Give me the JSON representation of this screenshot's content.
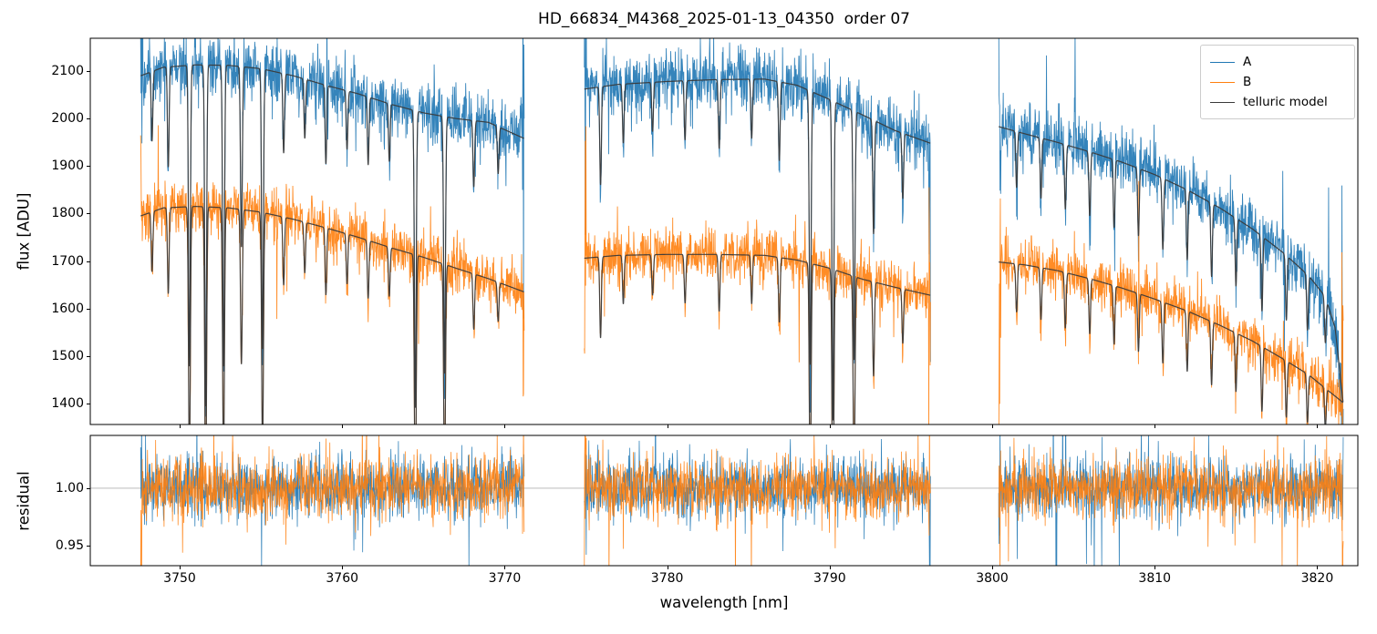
{
  "chart_data": {
    "type": "line",
    "title": "HD_66834_M4368_2025-01-13_04350  order 07",
    "xlabel": "wavelength [nm]",
    "xlim": [
      3744.5,
      3822.5
    ],
    "xticks": [
      3750,
      3760,
      3770,
      3780,
      3790,
      3800,
      3810,
      3820
    ],
    "segments_nm": [
      [
        3747.6,
        3771.2
      ],
      [
        3774.9,
        3796.2
      ],
      [
        3800.4,
        3821.6
      ]
    ],
    "sampling_step_nm": 0.02,
    "noise_seed": 20250113,
    "legend": {
      "position": "upper right",
      "entries": [
        "A",
        "B",
        "telluric model"
      ]
    },
    "colors": {
      "A": "#1f77b4",
      "B": "#ff7f0e",
      "telluric_model": "#3a3a3a",
      "grid_line": "#b0b0b0"
    },
    "panels": [
      {
        "ylabel": "flux [ADU]",
        "ylim": [
          1356,
          2169
        ],
        "yticks": [
          1400,
          1500,
          1600,
          1700,
          1800,
          1900,
          2000,
          2100
        ],
        "noise_sigma_adu": {
          "A": 33,
          "B": 28
        },
        "series": [
          {
            "name": "A",
            "continuum": [
              [
                3747.6,
                2090
              ],
              [
                3749,
                2108
              ],
              [
                3751,
                2113
              ],
              [
                3753,
                2112
              ],
              [
                3755,
                2105
              ],
              [
                3757,
                2090
              ],
              [
                3759,
                2070
              ],
              [
                3761,
                2052
              ],
              [
                3763,
                2030
              ],
              [
                3765,
                2012
              ],
              [
                3767,
                2000
              ],
              [
                3769,
                1992
              ],
              [
                3771.2,
                1958
              ],
              [
                3774.9,
                2062
              ],
              [
                3777,
                2072
              ],
              [
                3780,
                2078
              ],
              [
                3783,
                2082
              ],
              [
                3786,
                2083
              ],
              [
                3788,
                2070
              ],
              [
                3790,
                2040
              ],
              [
                3792,
                2008
              ],
              [
                3794,
                1975
              ],
              [
                3796.2,
                1948
              ],
              [
                3800.4,
                1983
              ],
              [
                3802,
                1968
              ],
              [
                3804,
                1950
              ],
              [
                3806,
                1930
              ],
              [
                3808,
                1908
              ],
              [
                3810,
                1882
              ],
              [
                3812,
                1850
              ],
              [
                3814,
                1812
              ],
              [
                3816,
                1768
              ],
              [
                3818,
                1715
              ],
              [
                3819.5,
                1668
              ],
              [
                3820.5,
                1625
              ],
              [
                3821.1,
                1560
              ],
              [
                3821.6,
                1400
              ]
            ]
          },
          {
            "name": "B",
            "continuum": [
              [
                3747.6,
                1795
              ],
              [
                3749,
                1812
              ],
              [
                3751,
                1815
              ],
              [
                3753,
                1812
              ],
              [
                3755,
                1803
              ],
              [
                3757,
                1788
              ],
              [
                3759,
                1770
              ],
              [
                3761,
                1750
              ],
              [
                3763,
                1728
              ],
              [
                3765,
                1708
              ],
              [
                3767,
                1685
              ],
              [
                3769,
                1663
              ],
              [
                3771.2,
                1635
              ],
              [
                3774.9,
                1706
              ],
              [
                3777,
                1712
              ],
              [
                3780,
                1714
              ],
              [
                3783,
                1714
              ],
              [
                3786,
                1712
              ],
              [
                3788,
                1702
              ],
              [
                3790,
                1685
              ],
              [
                3792,
                1662
              ],
              [
                3794,
                1645
              ],
              [
                3796.2,
                1628
              ],
              [
                3800.4,
                1698
              ],
              [
                3802,
                1692
              ],
              [
                3804,
                1680
              ],
              [
                3806,
                1663
              ],
              [
                3808,
                1643
              ],
              [
                3810,
                1620
              ],
              [
                3812,
                1595
              ],
              [
                3814,
                1565
              ],
              [
                3816,
                1532
              ],
              [
                3818,
                1492
              ],
              [
                3819.5,
                1460
              ],
              [
                3820.5,
                1432
              ],
              [
                3821.6,
                1402
              ]
            ]
          },
          {
            "name": "telluric model",
            "applies_to": [
              "A",
              "B"
            ]
          }
        ],
        "telluric_lines": [
          [
            3748.3,
            0.07,
            0.05
          ],
          [
            3749.3,
            0.1,
            0.05
          ],
          [
            3750.6,
            0.3,
            0.055
          ],
          [
            3751.6,
            0.34,
            0.055
          ],
          [
            3752.7,
            0.3,
            0.055
          ],
          [
            3753.8,
            0.18,
            0.055
          ],
          [
            3755.1,
            0.28,
            0.055
          ],
          [
            3756.4,
            0.08,
            0.05
          ],
          [
            3757.7,
            0.06,
            0.05
          ],
          [
            3759.0,
            0.08,
            0.05
          ],
          [
            3760.3,
            0.06,
            0.05
          ],
          [
            3761.6,
            0.07,
            0.05
          ],
          [
            3762.9,
            0.06,
            0.05
          ],
          [
            3764.5,
            0.31,
            0.055
          ],
          [
            3766.3,
            0.27,
            0.055
          ],
          [
            3768.1,
            0.07,
            0.05
          ],
          [
            3769.6,
            0.05,
            0.05
          ],
          [
            3775.9,
            0.1,
            0.05
          ],
          [
            3777.3,
            0.06,
            0.05
          ],
          [
            3779.1,
            0.05,
            0.05
          ],
          [
            3781.1,
            0.06,
            0.05
          ],
          [
            3783.2,
            0.07,
            0.05
          ],
          [
            3785.2,
            0.06,
            0.05
          ],
          [
            3786.9,
            0.08,
            0.05
          ],
          [
            3788.8,
            0.28,
            0.055
          ],
          [
            3790.2,
            0.33,
            0.055
          ],
          [
            3791.5,
            0.26,
            0.055
          ],
          [
            3792.7,
            0.12,
            0.05
          ],
          [
            3794.5,
            0.07,
            0.05
          ],
          [
            3801.5,
            0.06,
            0.05
          ],
          [
            3803.0,
            0.065,
            0.05
          ],
          [
            3804.5,
            0.07,
            0.05
          ],
          [
            3806.0,
            0.07,
            0.05
          ],
          [
            3807.5,
            0.075,
            0.05
          ],
          [
            3809.0,
            0.075,
            0.05
          ],
          [
            3810.5,
            0.08,
            0.05
          ],
          [
            3812.0,
            0.08,
            0.05
          ],
          [
            3813.5,
            0.085,
            0.05
          ],
          [
            3815.0,
            0.08,
            0.05
          ],
          [
            3816.6,
            0.09,
            0.05
          ],
          [
            3818.1,
            0.08,
            0.05
          ],
          [
            3819.4,
            0.07,
            0.05
          ],
          [
            3820.5,
            0.06,
            0.05
          ]
        ]
      },
      {
        "ylabel": "residual",
        "ylim": [
          0.9325,
          1.046
        ],
        "yticks": [
          0.95,
          1.0
        ],
        "ytick_labels": [
          "0.95",
          "1.00"
        ],
        "baseline": 1.0,
        "noise_sigma": 0.013
      }
    ]
  }
}
